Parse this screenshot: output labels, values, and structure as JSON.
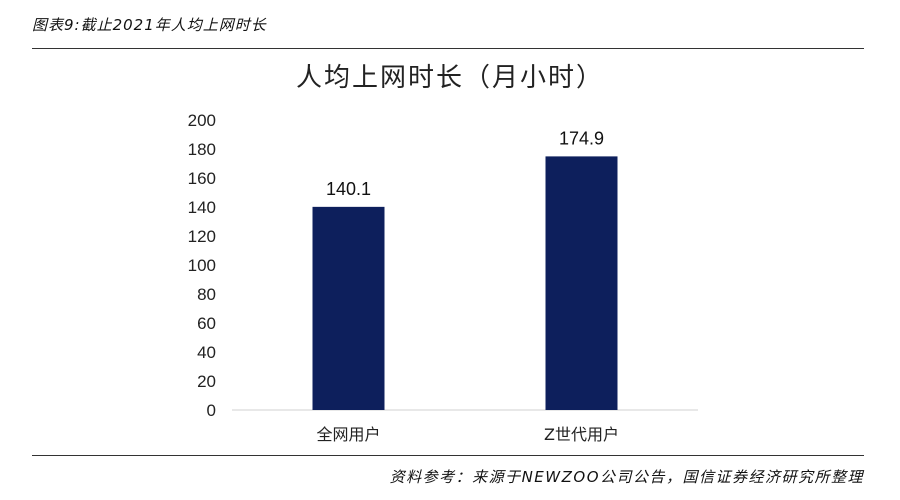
{
  "figure_caption": "图表9:截止2021年人均上网时长",
  "source_note": "资料参考：来源于NEWZOO公司公告，国信证券经济研究所整理",
  "chart_data": {
    "type": "bar",
    "title": "人均上网时长（月小时）",
    "categories": [
      "全网用户",
      "Z世代用户"
    ],
    "values": [
      140.1,
      174.9
    ],
    "data_labels": [
      "140.1",
      "174.9"
    ],
    "ylim": [
      0,
      200
    ],
    "yticks": [
      0,
      20,
      40,
      60,
      80,
      100,
      120,
      140,
      160,
      180,
      200
    ],
    "xlabel": "",
    "ylabel": "",
    "grid": false,
    "legend": "none",
    "bar_color": "#0d1f5c"
  }
}
